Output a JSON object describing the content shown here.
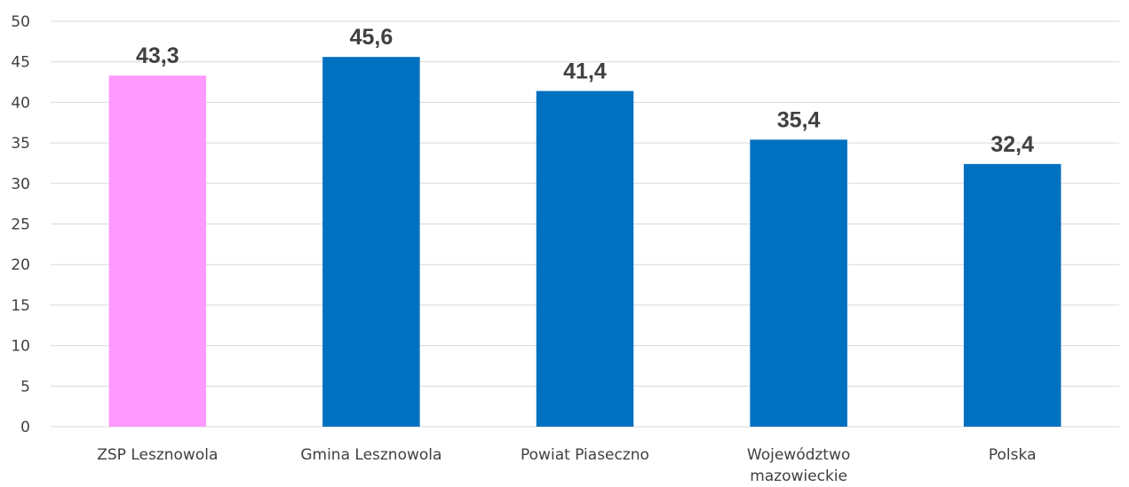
{
  "chart_data": {
    "type": "bar",
    "title": "",
    "xlabel": "",
    "ylabel": "",
    "categories": [
      "ZSP Lesznowola",
      "Gmina Lesznowola",
      "Powiat Piaseczno",
      "Województwo mazowieckie",
      "Polska"
    ],
    "category_lines": [
      [
        "ZSP Lesznowola"
      ],
      [
        "Gmina Lesznowola"
      ],
      [
        "Powiat Piaseczno"
      ],
      [
        "Województwo",
        "mazowieckie"
      ],
      [
        "Polska"
      ]
    ],
    "values": [
      43.3,
      45.6,
      41.4,
      35.4,
      32.4
    ],
    "value_labels": [
      "43,3",
      "45,6",
      "41,4",
      "35,4",
      "32,4"
    ],
    "bar_colors": [
      "#ff99ff",
      "#0070c0",
      "#0070c0",
      "#0070c0",
      "#0070c0"
    ],
    "ylim": [
      0,
      50
    ],
    "yticks": [
      0,
      5,
      10,
      15,
      20,
      25,
      30,
      35,
      40,
      45,
      50
    ],
    "grid": true,
    "legend": "none"
  }
}
